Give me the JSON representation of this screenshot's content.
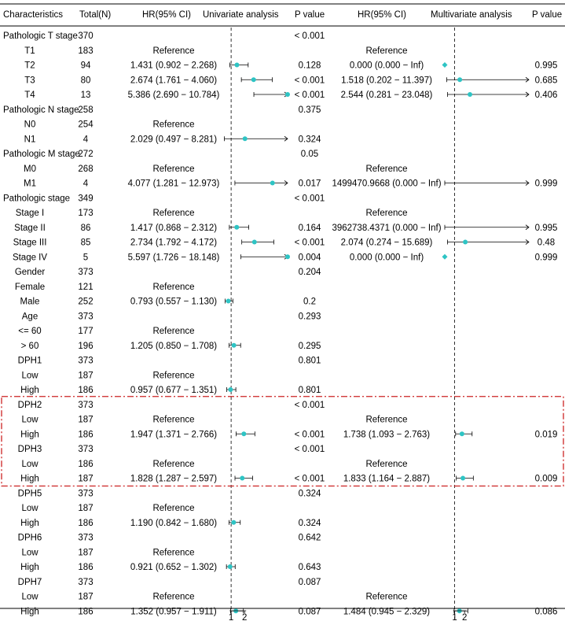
{
  "chart_data": {
    "type": "forest",
    "headers": {
      "characteristics": "Characteristics",
      "total": "Total(N)",
      "hr_uni": "HR(95% CI)",
      "uni_title": "Univariate analysis",
      "p_uni": "P value",
      "hr_multi": "HR(95% CI)",
      "multi_title": "Multivariate analysis",
      "p_multi": "P value"
    },
    "axes": {
      "uni": {
        "ref": 1,
        "ticks": [
          1,
          2
        ],
        "xlim": [
          0,
          5.2
        ]
      },
      "multi": {
        "ref": 1,
        "ticks": [
          1,
          2
        ],
        "xlim": [
          0,
          8.5
        ]
      }
    },
    "colors": {
      "point": "#2ec4c4",
      "highlight": "#cc2222",
      "line": "#000000"
    },
    "rows": [
      {
        "label": "Pathologic T stage",
        "indent": false,
        "n": "370",
        "hr_uni": "",
        "p_uni": "< 0.001",
        "hr_multi": "",
        "p_multi": ""
      },
      {
        "label": "T1",
        "indent": true,
        "n": "183",
        "hr_uni": "Reference",
        "p_uni": "",
        "hr_multi": "Reference",
        "p_multi": ""
      },
      {
        "label": "T2",
        "indent": true,
        "n": "94",
        "hr_uni": "1.431 (0.902 − 2.268)",
        "p_uni": "0.128",
        "hr_multi": "0.000 (0.000 − Inf)",
        "p_multi": "0.995",
        "uni": [
          1.431,
          0.902,
          2.268
        ],
        "multi": [
          0.0,
          0.0,
          null
        ]
      },
      {
        "label": "T3",
        "indent": true,
        "n": "80",
        "hr_uni": "2.674 (1.761 − 4.060)",
        "p_uni": "< 0.001",
        "hr_multi": "1.518 (0.202 − 11.397)",
        "p_multi": "0.685",
        "uni": [
          2.674,
          1.761,
          4.06
        ],
        "multi": [
          1.518,
          0.202,
          11.397
        ]
      },
      {
        "label": "T4",
        "indent": true,
        "n": "13",
        "hr_uni": "5.386 (2.690 − 10.784)",
        "p_uni": "< 0.001",
        "hr_multi": "2.544 (0.281 − 23.048)",
        "p_multi": "0.406",
        "uni": [
          5.386,
          2.69,
          10.784
        ],
        "multi": [
          2.544,
          0.281,
          23.048
        ]
      },
      {
        "label": "Pathologic N stage",
        "indent": false,
        "n": "258",
        "hr_uni": "",
        "p_uni": "0.375",
        "hr_multi": "",
        "p_multi": ""
      },
      {
        "label": "N0",
        "indent": true,
        "n": "254",
        "hr_uni": "Reference",
        "p_uni": "",
        "hr_multi": "",
        "p_multi": ""
      },
      {
        "label": "N1",
        "indent": true,
        "n": "4",
        "hr_uni": "2.029 (0.497 − 8.281)",
        "p_uni": "0.324",
        "hr_multi": "",
        "p_multi": "",
        "uni": [
          2.029,
          0.497,
          8.281
        ]
      },
      {
        "label": "Pathologic M stage",
        "indent": false,
        "n": "272",
        "hr_uni": "",
        "p_uni": "0.05",
        "hr_multi": "",
        "p_multi": ""
      },
      {
        "label": "M0",
        "indent": true,
        "n": "268",
        "hr_uni": "Reference",
        "p_uni": "",
        "hr_multi": "Reference",
        "p_multi": ""
      },
      {
        "label": "M1",
        "indent": true,
        "n": "4",
        "hr_uni": "4.077 (1.281 − 12.973)",
        "p_uni": "0.017",
        "hr_multi": "1499470.9668 (0.000 − Inf)",
        "p_multi": "0.999",
        "uni": [
          4.077,
          1.281,
          12.973
        ],
        "multi": [
          1499470.9668,
          0.0,
          null
        ]
      },
      {
        "label": "Pathologic stage",
        "indent": false,
        "n": "349",
        "hr_uni": "",
        "p_uni": "< 0.001",
        "hr_multi": "",
        "p_multi": ""
      },
      {
        "label": "Stage I",
        "indent": true,
        "n": "173",
        "hr_uni": "Reference",
        "p_uni": "",
        "hr_multi": "Reference",
        "p_multi": ""
      },
      {
        "label": "Stage II",
        "indent": true,
        "n": "86",
        "hr_uni": "1.417 (0.868 − 2.312)",
        "p_uni": "0.164",
        "hr_multi": "3962738.4371 (0.000 − Inf)",
        "p_multi": "0.995",
        "uni": [
          1.417,
          0.868,
          2.312
        ],
        "multi": [
          3962738.4371,
          0.0,
          null
        ]
      },
      {
        "label": "Stage III",
        "indent": true,
        "n": "85",
        "hr_uni": "2.734 (1.792 − 4.172)",
        "p_uni": "< 0.001",
        "hr_multi": "2.074 (0.274 − 15.689)",
        "p_multi": "0.48",
        "uni": [
          2.734,
          1.792,
          4.172
        ],
        "multi": [
          2.074,
          0.274,
          15.689
        ]
      },
      {
        "label": "Stage IV",
        "indent": true,
        "n": "5",
        "hr_uni": "5.597 (1.726 − 18.148)",
        "p_uni": "0.004",
        "hr_multi": "0.000 (0.000 − Inf)",
        "p_multi": "0.999",
        "uni": [
          5.597,
          1.726,
          18.148
        ],
        "multi": [
          0.0,
          0.0,
          null
        ]
      },
      {
        "label": "Gender",
        "indent": true,
        "n": "373",
        "hr_uni": "",
        "p_uni": "0.204",
        "hr_multi": "",
        "p_multi": ""
      },
      {
        "label": "Female",
        "indent": true,
        "n": "121",
        "hr_uni": "Reference",
        "p_uni": "",
        "hr_multi": "",
        "p_multi": ""
      },
      {
        "label": "Male",
        "indent": true,
        "n": "252",
        "hr_uni": "0.793 (0.557 − 1.130)",
        "p_uni": "0.2",
        "hr_multi": "",
        "p_multi": "",
        "uni": [
          0.793,
          0.557,
          1.13
        ]
      },
      {
        "label": "Age",
        "indent": true,
        "n": "373",
        "hr_uni": "",
        "p_uni": "0.293",
        "hr_multi": "",
        "p_multi": ""
      },
      {
        "label": "<= 60",
        "indent": true,
        "n": "177",
        "hr_uni": "Reference",
        "p_uni": "",
        "hr_multi": "",
        "p_multi": ""
      },
      {
        "label": "> 60",
        "indent": true,
        "n": "196",
        "hr_uni": "1.205 (0.850 − 1.708)",
        "p_uni": "0.295",
        "hr_multi": "",
        "p_multi": "",
        "uni": [
          1.205,
          0.85,
          1.708
        ]
      },
      {
        "label": "DPH1",
        "indent": true,
        "n": "373",
        "hr_uni": "",
        "p_uni": "0.801",
        "hr_multi": "",
        "p_multi": ""
      },
      {
        "label": "Low",
        "indent": true,
        "n": "187",
        "hr_uni": "Reference",
        "p_uni": "",
        "hr_multi": "",
        "p_multi": ""
      },
      {
        "label": "High",
        "indent": true,
        "n": "186",
        "hr_uni": "0.957 (0.677 − 1.351)",
        "p_uni": "0.801",
        "hr_multi": "",
        "p_multi": "",
        "uni": [
          0.957,
          0.677,
          1.351
        ]
      },
      {
        "label": "DPH2",
        "indent": true,
        "n": "373",
        "hr_uni": "",
        "p_uni": "< 0.001",
        "hr_multi": "",
        "p_multi": "",
        "highlight": true
      },
      {
        "label": "Low",
        "indent": true,
        "n": "187",
        "hr_uni": "Reference",
        "p_uni": "",
        "hr_multi": "Reference",
        "p_multi": "",
        "highlight": true
      },
      {
        "label": "High",
        "indent": true,
        "n": "186",
        "hr_uni": "1.947 (1.371 − 2.766)",
        "p_uni": "< 0.001",
        "hr_multi": "1.738 (1.093 − 2.763)",
        "p_multi": "0.019",
        "uni": [
          1.947,
          1.371,
          2.766
        ],
        "multi": [
          1.738,
          1.093,
          2.763
        ],
        "highlight": true
      },
      {
        "label": "DPH3",
        "indent": true,
        "n": "373",
        "hr_uni": "",
        "p_uni": "< 0.001",
        "hr_multi": "",
        "p_multi": "",
        "highlight": true
      },
      {
        "label": "Low",
        "indent": true,
        "n": "186",
        "hr_uni": "Reference",
        "p_uni": "",
        "hr_multi": "Reference",
        "p_multi": "",
        "highlight": true
      },
      {
        "label": "High",
        "indent": true,
        "n": "187",
        "hr_uni": "1.828 (1.287 − 2.597)",
        "p_uni": "< 0.001",
        "hr_multi": "1.833 (1.164 − 2.887)",
        "p_multi": "0.009",
        "uni": [
          1.828,
          1.287,
          2.597
        ],
        "multi": [
          1.833,
          1.164,
          2.887
        ],
        "highlight": true
      },
      {
        "label": "DPH5",
        "indent": true,
        "n": "373",
        "hr_uni": "",
        "p_uni": "0.324",
        "hr_multi": "",
        "p_multi": ""
      },
      {
        "label": "Low",
        "indent": true,
        "n": "187",
        "hr_uni": "Reference",
        "p_uni": "",
        "hr_multi": "",
        "p_multi": ""
      },
      {
        "label": "High",
        "indent": true,
        "n": "186",
        "hr_uni": "1.190 (0.842 − 1.680)",
        "p_uni": "0.324",
        "hr_multi": "",
        "p_multi": "",
        "uni": [
          1.19,
          0.842,
          1.68
        ]
      },
      {
        "label": "DPH6",
        "indent": true,
        "n": "373",
        "hr_uni": "",
        "p_uni": "0.642",
        "hr_multi": "",
        "p_multi": ""
      },
      {
        "label": "Low",
        "indent": true,
        "n": "187",
        "hr_uni": "Reference",
        "p_uni": "",
        "hr_multi": "",
        "p_multi": ""
      },
      {
        "label": "High",
        "indent": true,
        "n": "186",
        "hr_uni": "0.921 (0.652 − 1.302)",
        "p_uni": "0.643",
        "hr_multi": "",
        "p_multi": "",
        "uni": [
          0.921,
          0.652,
          1.302
        ]
      },
      {
        "label": "DPH7",
        "indent": true,
        "n": "373",
        "hr_uni": "",
        "p_uni": "0.087",
        "hr_multi": "",
        "p_multi": ""
      },
      {
        "label": "Low",
        "indent": true,
        "n": "187",
        "hr_uni": "Reference",
        "p_uni": "",
        "hr_multi": "Reference",
        "p_multi": ""
      },
      {
        "label": "High",
        "indent": true,
        "n": "186",
        "hr_uni": "1.352 (0.957 − 1.911)",
        "p_uni": "0.087",
        "hr_multi": "1.484 (0.945 − 2.329)",
        "p_multi": "0.086",
        "uni": [
          1.352,
          0.957,
          1.911
        ],
        "multi": [
          1.484,
          0.945,
          2.329
        ]
      }
    ]
  }
}
